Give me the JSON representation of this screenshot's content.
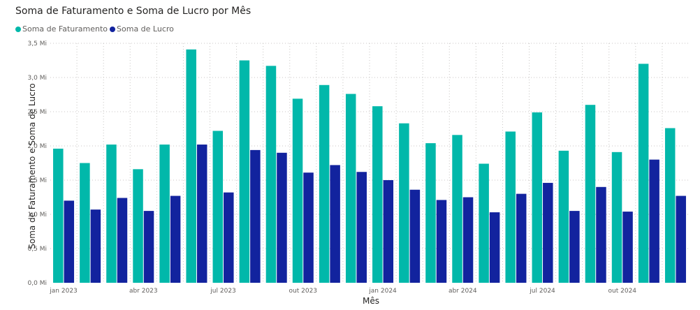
{
  "chart_data": {
    "type": "bar",
    "title": "Soma de Faturamento e Soma de Lucro por Mês",
    "xlabel": "Mês",
    "ylabel": "Soma de Faturamento e Soma de Lucro",
    "ylim": [
      0,
      3.5
    ],
    "yticks": [
      {
        "value": 0.0,
        "label": "0,0 Mi"
      },
      {
        "value": 0.5,
        "label": "0,5 Mi"
      },
      {
        "value": 1.0,
        "label": "1,0 Mi"
      },
      {
        "value": 1.5,
        "label": "1,5 Mi"
      },
      {
        "value": 2.0,
        "label": "2,0 Mi"
      },
      {
        "value": 2.5,
        "label": "2,5 Mi"
      },
      {
        "value": 3.0,
        "label": "3,0 Mi"
      },
      {
        "value": 3.5,
        "label": "3,5 Mi"
      }
    ],
    "xticks": [
      {
        "index": 0,
        "label": "jan 2023"
      },
      {
        "index": 3,
        "label": "abr 2023"
      },
      {
        "index": 6,
        "label": "jul 2023"
      },
      {
        "index": 9,
        "label": "out 2023"
      },
      {
        "index": 12,
        "label": "jan 2024"
      },
      {
        "index": 15,
        "label": "abr 2024"
      },
      {
        "index": 18,
        "label": "jul 2024"
      },
      {
        "index": 21,
        "label": "out 2024"
      }
    ],
    "categories": [
      "jan 2023",
      "fev 2023",
      "mar 2023",
      "abr 2023",
      "mai 2023",
      "jun 2023",
      "jul 2023",
      "ago 2023",
      "set 2023",
      "out 2023",
      "nov 2023",
      "dez 2023",
      "jan 2024",
      "fev 2024",
      "mar 2024",
      "abr 2024",
      "mai 2024",
      "jun 2024",
      "jul 2024",
      "ago 2024",
      "set 2024",
      "out 2024",
      "nov 2024",
      "dez 2024"
    ],
    "series": [
      {
        "name": "Soma de Faturamento",
        "color": "#01b8aa",
        "values": [
          1.96,
          1.75,
          2.02,
          1.66,
          2.02,
          3.41,
          2.22,
          3.25,
          3.17,
          2.69,
          2.89,
          2.76,
          2.58,
          2.33,
          2.04,
          2.16,
          1.74,
          2.21,
          2.49,
          1.93,
          2.6,
          1.91,
          3.2,
          2.26
        ]
      },
      {
        "name": "Soma de Lucro",
        "color": "#12239e",
        "values": [
          1.2,
          1.07,
          1.24,
          1.05,
          1.27,
          2.02,
          1.32,
          1.94,
          1.9,
          1.61,
          1.72,
          1.62,
          1.5,
          1.36,
          1.21,
          1.25,
          1.03,
          1.3,
          1.46,
          1.05,
          1.4,
          1.04,
          1.8,
          1.27
        ]
      }
    ],
    "grid": true,
    "legend_position": "top-left"
  }
}
